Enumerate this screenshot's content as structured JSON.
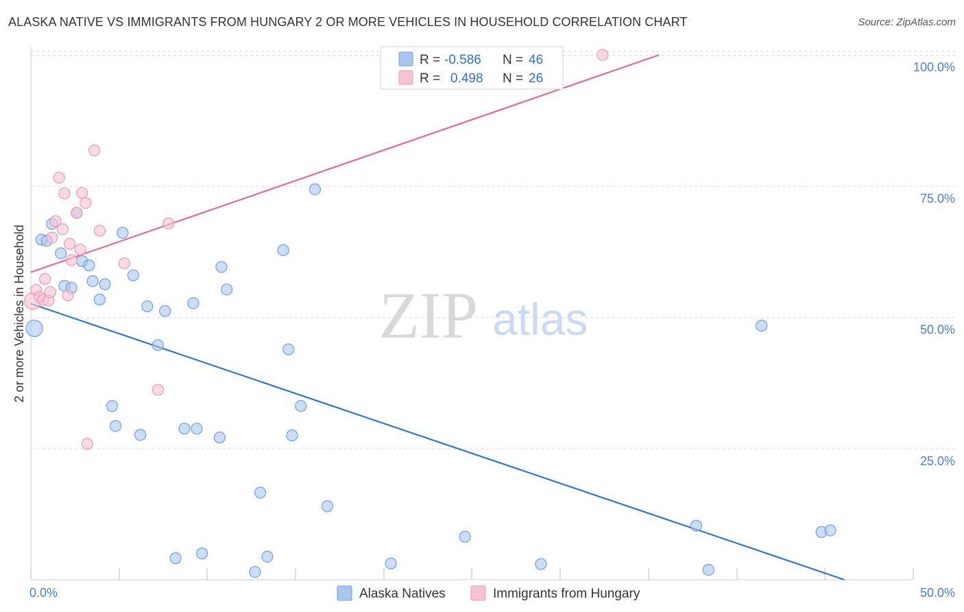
{
  "header": {
    "title": "ALASKA NATIVE VS IMMIGRANTS FROM HUNGARY 2 OR MORE VEHICLES IN HOUSEHOLD CORRELATION CHART",
    "source": "Source: ZipAtlas.com"
  },
  "watermark": {
    "zip": "ZIP",
    "atlas": "atlas"
  },
  "colors": {
    "blue_fill": "#aac6ee",
    "blue_stroke": "#6e9fe0",
    "blue_line": "#2f74d0",
    "pink_fill": "#f6c3d3",
    "pink_stroke": "#e99ab4",
    "pink_line": "#e06a94",
    "grid": "#d9d9d9",
    "tick_text": "#4a7fd0"
  },
  "chart_data": {
    "type": "scatter",
    "title": "ALASKA NATIVE VS IMMIGRANTS FROM HUNGARY 2 OR MORE VEHICLES IN HOUSEHOLD CORRELATION CHART",
    "xlabel": "",
    "ylabel": "2 or more Vehicles in Household",
    "xlim": [
      0,
      50
    ],
    "ylim": [
      0,
      100
    ],
    "x_tick_labels": [
      "0.0%",
      "50.0%"
    ],
    "y_ticks": [
      25,
      50,
      75,
      100
    ],
    "y_tick_labels": [
      "25.0%",
      "50.0%",
      "75.0%",
      "100.0%"
    ],
    "grid": "horizontal dashed",
    "legend_position": "top-center",
    "bottom_legend": [
      "Alaska Natives",
      "Immigrants from Hungary"
    ],
    "series": [
      {
        "name": "Alaska Natives",
        "color": "#aac6ee",
        "stats": {
          "r_label": "R =",
          "r": "-0.586",
          "n_label": "N =",
          "n": "46"
        },
        "trend": {
          "x": [
            0,
            46.1
          ],
          "y": [
            52.6,
            0.0
          ]
        },
        "points": [
          {
            "x": 0.2,
            "y": 47.9,
            "size": "large"
          },
          {
            "x": 0.6,
            "y": 64.8
          },
          {
            "x": 0.9,
            "y": 64.6
          },
          {
            "x": 1.2,
            "y": 67.8
          },
          {
            "x": 1.7,
            "y": 62.2
          },
          {
            "x": 1.9,
            "y": 56.0
          },
          {
            "x": 2.3,
            "y": 55.6
          },
          {
            "x": 2.6,
            "y": 69.9
          },
          {
            "x": 2.9,
            "y": 60.7
          },
          {
            "x": 3.3,
            "y": 59.9
          },
          {
            "x": 3.5,
            "y": 56.9
          },
          {
            "x": 3.9,
            "y": 53.4
          },
          {
            "x": 4.2,
            "y": 56.3
          },
          {
            "x": 4.6,
            "y": 33.1
          },
          {
            "x": 4.8,
            "y": 29.3
          },
          {
            "x": 5.2,
            "y": 66.1
          },
          {
            "x": 5.8,
            "y": 58.0
          },
          {
            "x": 6.2,
            "y": 27.6
          },
          {
            "x": 6.6,
            "y": 52.1
          },
          {
            "x": 7.2,
            "y": 44.7
          },
          {
            "x": 7.6,
            "y": 51.2
          },
          {
            "x": 8.2,
            "y": 4.1
          },
          {
            "x": 8.7,
            "y": 28.8
          },
          {
            "x": 9.2,
            "y": 52.7
          },
          {
            "x": 9.4,
            "y": 28.8
          },
          {
            "x": 9.7,
            "y": 5.0
          },
          {
            "x": 10.7,
            "y": 27.1
          },
          {
            "x": 10.8,
            "y": 59.6
          },
          {
            "x": 11.1,
            "y": 55.3
          },
          {
            "x": 12.7,
            "y": 1.5
          },
          {
            "x": 13.0,
            "y": 16.6
          },
          {
            "x": 13.4,
            "y": 4.4
          },
          {
            "x": 14.3,
            "y": 62.8
          },
          {
            "x": 14.6,
            "y": 43.9
          },
          {
            "x": 14.8,
            "y": 27.5
          },
          {
            "x": 15.3,
            "y": 33.1
          },
          {
            "x": 16.1,
            "y": 74.4
          },
          {
            "x": 16.8,
            "y": 14.0
          },
          {
            "x": 20.4,
            "y": 3.1
          },
          {
            "x": 24.6,
            "y": 8.2
          },
          {
            "x": 28.9,
            "y": 3.0
          },
          {
            "x": 37.7,
            "y": 10.3
          },
          {
            "x": 38.4,
            "y": 1.9
          },
          {
            "x": 41.4,
            "y": 48.4
          },
          {
            "x": 44.8,
            "y": 9.1
          },
          {
            "x": 45.3,
            "y": 9.4
          }
        ]
      },
      {
        "name": "Immigrants from Hungary",
        "color": "#f6c3d3",
        "stats": {
          "r_label": "R =",
          "r": "0.498",
          "n_label": "N =",
          "n": "26"
        },
        "trend": {
          "x": [
            0,
            35.6
          ],
          "y": [
            58.6,
            100.0
          ]
        },
        "points": [
          {
            "x": 0.1,
            "y": 53.1,
            "size": "large"
          },
          {
            "x": 0.3,
            "y": 55.2
          },
          {
            "x": 0.5,
            "y": 53.9
          },
          {
            "x": 0.7,
            "y": 53.3
          },
          {
            "x": 0.8,
            "y": 57.3
          },
          {
            "x": 1.0,
            "y": 53.2
          },
          {
            "x": 1.1,
            "y": 54.8
          },
          {
            "x": 1.2,
            "y": 65.2
          },
          {
            "x": 1.4,
            "y": 68.3
          },
          {
            "x": 1.6,
            "y": 76.6
          },
          {
            "x": 1.8,
            "y": 66.8
          },
          {
            "x": 1.9,
            "y": 73.6
          },
          {
            "x": 2.1,
            "y": 54.2
          },
          {
            "x": 2.2,
            "y": 64.0
          },
          {
            "x": 2.3,
            "y": 60.9
          },
          {
            "x": 2.6,
            "y": 69.9
          },
          {
            "x": 2.8,
            "y": 62.9
          },
          {
            "x": 2.9,
            "y": 73.7
          },
          {
            "x": 3.1,
            "y": 71.8
          },
          {
            "x": 3.2,
            "y": 25.9
          },
          {
            "x": 3.6,
            "y": 81.8
          },
          {
            "x": 3.9,
            "y": 66.5
          },
          {
            "x": 5.3,
            "y": 60.3
          },
          {
            "x": 7.2,
            "y": 36.2
          },
          {
            "x": 7.8,
            "y": 67.9
          },
          {
            "x": 32.4,
            "y": 100.0
          }
        ]
      }
    ]
  }
}
